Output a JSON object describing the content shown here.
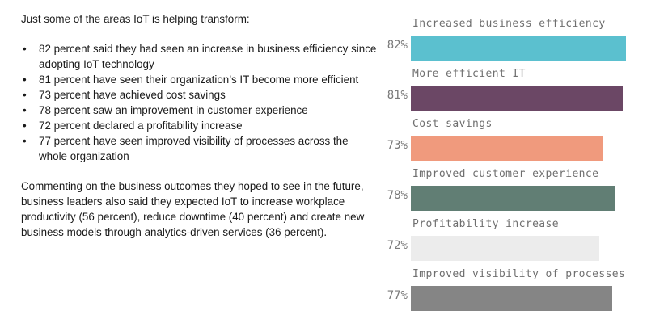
{
  "text": {
    "intro": "Just some of the areas IoT is helping transform:",
    "bullet_char": "•",
    "bullets": [
      "82 percent said they had seen an increase in business efficiency since adopting IoT technology",
      "81 percent have seen their organization’s IT become more efficient",
      "73 percent have achieved cost savings",
      "78 percent saw an improvement in customer experience",
      "72 percent declared a profitability increase",
      "77 percent have seen improved visibility of processes across the whole organization"
    ],
    "paragraph": "Commenting on the business outcomes they hoped to see in the future, business leaders also said they expected IoT to increase workplace productivity (56 percent), reduce downtime (40 percent) and create new business models through analytics-driven services (36 percent)."
  },
  "chart_data": {
    "type": "bar",
    "orientation": "horizontal",
    "title": "",
    "xlabel": "",
    "ylabel": "",
    "value_suffix": "%",
    "xlim": [
      0,
      100
    ],
    "categories": [
      "Increased business efficiency",
      "More efficient IT",
      "Cost savings",
      "Improved customer experience",
      "Profitability increase",
      "Improved visibility of processes"
    ],
    "values": [
      82,
      81,
      73,
      78,
      72,
      77
    ],
    "value_labels": [
      "82%",
      "81%",
      "73%",
      "78%",
      "72%",
      "77%"
    ],
    "colors": [
      "#5bc0cf",
      "#6b4765",
      "#f09a7d",
      "#617e74",
      "#ececec",
      "#858585"
    ],
    "grid": false,
    "legend": "none"
  }
}
